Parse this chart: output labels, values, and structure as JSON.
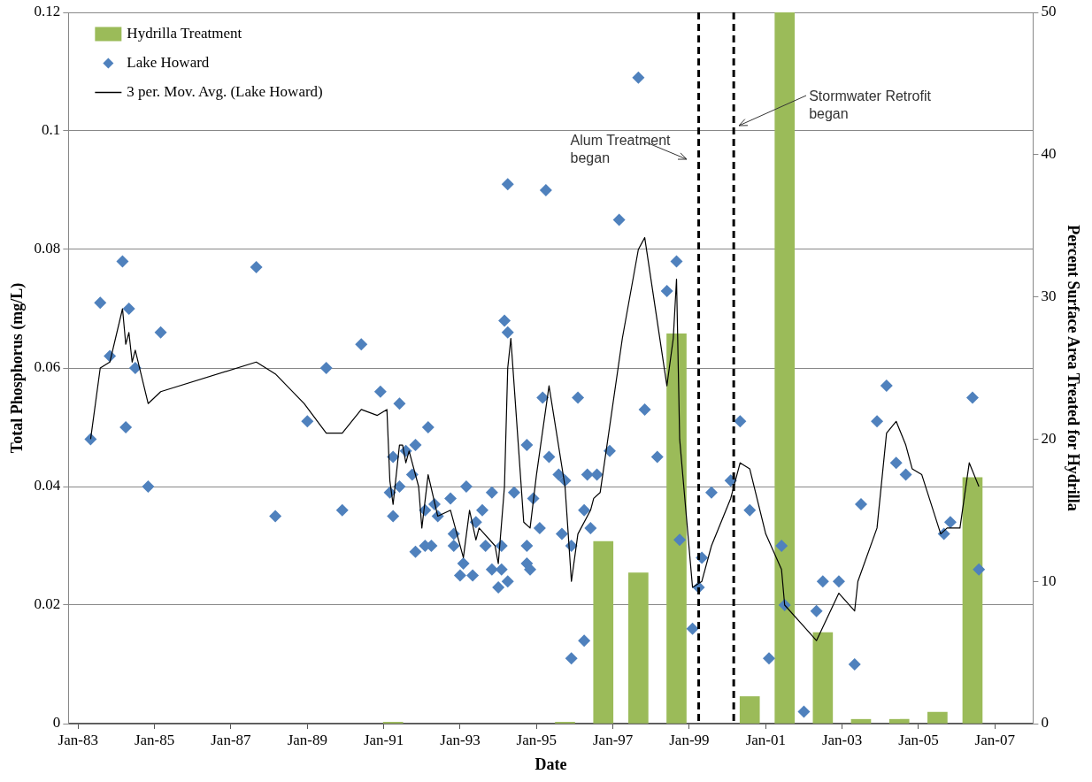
{
  "chart_data": {
    "type": "scatter",
    "xlabel": "Date",
    "ylabel": "Total Phosphorus (mg/L)",
    "y2label": "Percent Surface Area Treated for Hydrilla",
    "xlim": [
      "1982-10",
      "2008-01"
    ],
    "xticks": [
      {
        "value": "1983-01",
        "label": "Jan-83"
      },
      {
        "value": "1985-01",
        "label": "Jan-85"
      },
      {
        "value": "1987-01",
        "label": "Jan-87"
      },
      {
        "value": "1989-01",
        "label": "Jan-89"
      },
      {
        "value": "1991-01",
        "label": "Jan-91"
      },
      {
        "value": "1993-01",
        "label": "Jan-93"
      },
      {
        "value": "1995-01",
        "label": "Jan-95"
      },
      {
        "value": "1997-01",
        "label": "Jan-97"
      },
      {
        "value": "1999-01",
        "label": "Jan-99"
      },
      {
        "value": "2001-01",
        "label": "Jan-01"
      },
      {
        "value": "2003-01",
        "label": "Jan-03"
      },
      {
        "value": "2005-01",
        "label": "Jan-05"
      },
      {
        "value": "2007-01",
        "label": "Jan-07"
      }
    ],
    "ylim": [
      0,
      0.12
    ],
    "yticks": [
      0,
      0.02,
      0.04,
      0.06,
      0.08,
      0.1,
      0.12
    ],
    "y2lim": [
      0,
      50
    ],
    "y2ticks": [
      0,
      10,
      20,
      30,
      40,
      50
    ],
    "grid": "y",
    "legend": "top left",
    "marker": "diamond",
    "ref_lines": [
      {
        "axis": "x",
        "value": "1999-04",
        "label": "Alum Treatment began",
        "color": "#000000",
        "line_style": "dashed"
      },
      {
        "axis": "x",
        "value": "2000-03",
        "label": "Stormwater Retrofit began",
        "color": "#000000",
        "line_style": "dashed"
      }
    ],
    "series": [
      {
        "type": "bar",
        "name": "Hydrilla Treatment",
        "color": "#9bbb59",
        "axis": "y2",
        "x": [
          "1991-04",
          "1995-10",
          "1996-10",
          "1997-09",
          "1998-09",
          "2000-08",
          "2001-07",
          "2002-07",
          "2003-07",
          "2004-07",
          "2005-07",
          "2006-06"
        ],
        "values": [
          0.1,
          0.1,
          12.8,
          10.6,
          27.4,
          1.9,
          50,
          6.4,
          0.3,
          0.3,
          0.8,
          17.3
        ]
      },
      {
        "name": "Lake Howard",
        "color": "#4f81bd",
        "x": [
          "1983-05",
          "1983-08",
          "1983-11",
          "1984-03",
          "1984-04",
          "1984-05",
          "1984-07",
          "1984-11",
          "1985-03",
          "1987-09",
          "1988-03",
          "1989-01",
          "1989-07",
          "1989-12",
          "1990-06",
          "1990-12",
          "1991-03",
          "1991-04",
          "1991-04",
          "1991-06",
          "1991-06",
          "1991-08",
          "1991-10",
          "1991-11",
          "1991-11",
          "1992-02",
          "1992-02",
          "1992-03",
          "1992-04",
          "1992-05",
          "1992-06",
          "1992-10",
          "1992-11",
          "1992-11",
          "1993-01",
          "1993-02",
          "1993-03",
          "1993-05",
          "1993-06",
          "1993-08",
          "1993-09",
          "1993-11",
          "1993-11",
          "1994-01",
          "1994-02",
          "1994-02",
          "1994-03",
          "1994-04",
          "1994-04",
          "1994-04",
          "1994-06",
          "1994-10",
          "1994-10",
          "1994-10",
          "1994-11",
          "1994-12",
          "1995-02",
          "1995-03",
          "1995-04",
          "1995-05",
          "1995-08",
          "1995-09",
          "1995-10",
          "1995-12",
          "1995-12",
          "1996-02",
          "1996-04",
          "1996-04",
          "1996-05",
          "1996-06",
          "1996-08",
          "1996-12",
          "1997-03",
          "1997-09",
          "1997-11",
          "1998-03",
          "1998-06",
          "1998-09",
          "1998-10",
          "1999-02",
          "1999-04",
          "1999-05",
          "1999-08",
          "2000-02",
          "2000-05",
          "2000-08",
          "2001-02",
          "2001-06",
          "2001-07",
          "2002-01",
          "2002-05",
          "2002-07",
          "2002-12",
          "2003-05",
          "2003-07",
          "2003-12",
          "2004-03",
          "2004-06",
          "2004-09",
          "2005-09",
          "2005-11",
          "2006-06",
          "2006-08"
        ],
        "values": [
          0.048,
          0.071,
          0.062,
          0.078,
          0.05,
          0.07,
          0.06,
          0.04,
          0.066,
          0.077,
          0.035,
          0.051,
          0.06,
          0.036,
          0.064,
          0.056,
          0.039,
          0.035,
          0.045,
          0.054,
          0.04,
          0.046,
          0.042,
          0.047,
          0.029,
          0.036,
          0.03,
          0.05,
          0.03,
          0.037,
          0.035,
          0.038,
          0.032,
          0.03,
          0.025,
          0.027,
          0.04,
          0.025,
          0.034,
          0.036,
          0.03,
          0.039,
          0.026,
          0.023,
          0.03,
          0.026,
          0.068,
          0.024,
          0.091,
          0.066,
          0.039,
          0.027,
          0.047,
          0.03,
          0.026,
          0.038,
          0.033,
          0.055,
          0.09,
          0.045,
          0.042,
          0.032,
          0.041,
          0.03,
          0.011,
          0.055,
          0.014,
          0.036,
          0.042,
          0.033,
          0.042,
          0.046,
          0.085,
          0.109,
          0.053,
          0.045,
          0.073,
          0.078,
          0.031,
          0.016,
          0.023,
          0.028,
          0.039,
          0.041,
          0.051,
          0.036,
          0.011,
          0.03,
          0.02,
          0.002,
          0.019,
          0.024,
          0.024,
          0.01,
          0.037,
          0.051,
          0.057,
          0.044,
          0.042,
          0.032,
          0.034,
          0.055,
          0.026
        ]
      },
      {
        "type": "line",
        "name": "3 per. Mov. Avg. (Lake Howard)",
        "color": "#000000",
        "marker": "none",
        "x": [
          "1983-05",
          "1983-08",
          "1983-11",
          "1984-03",
          "1984-04",
          "1984-05",
          "1984-06",
          "1984-07",
          "1984-11",
          "1985-03",
          "1987-09",
          "1988-03",
          "1988-12",
          "1989-07",
          "1989-12",
          "1990-06",
          "1990-11",
          "1991-02",
          "1991-03",
          "1991-04",
          "1991-06",
          "1991-07",
          "1991-08",
          "1991-09",
          "1991-12",
          "1992-01",
          "1992-03",
          "1992-06",
          "1992-10",
          "1993-02",
          "1993-04",
          "1993-06",
          "1993-07",
          "1993-12",
          "1994-01",
          "1994-03",
          "1994-04",
          "1994-05",
          "1994-09",
          "1994-11",
          "1995-01",
          "1995-05",
          "1995-10",
          "1995-12",
          "1996-02",
          "1996-06",
          "1996-07",
          "1996-09",
          "1997-04",
          "1997-09",
          "1997-11",
          "1998-06",
          "1998-08",
          "1998-09",
          "1998-10",
          "1999-02",
          "1999-05",
          "1999-08",
          "2000-02",
          "2000-05",
          "2000-08",
          "2001-01",
          "2001-06",
          "2001-07",
          "2001-12",
          "2002-05",
          "2002-12",
          "2003-05",
          "2003-06",
          "2003-12",
          "2004-03",
          "2004-06",
          "2004-09",
          "2004-11",
          "2005-02",
          "2005-08",
          "2005-10",
          "2006-02",
          "2006-05",
          "2006-08"
        ],
        "values": [
          0.048,
          0.06,
          0.061,
          0.07,
          0.064,
          0.066,
          0.061,
          0.063,
          0.054,
          0.056,
          0.061,
          0.059,
          0.054,
          0.049,
          0.049,
          0.053,
          0.052,
          0.053,
          0.041,
          0.037,
          0.047,
          0.047,
          0.044,
          0.046,
          0.04,
          0.033,
          0.042,
          0.035,
          0.036,
          0.028,
          0.036,
          0.031,
          0.033,
          0.03,
          0.027,
          0.04,
          0.06,
          0.065,
          0.034,
          0.033,
          0.042,
          0.057,
          0.04,
          0.024,
          0.032,
          0.036,
          0.038,
          0.039,
          0.065,
          0.08,
          0.082,
          0.057,
          0.065,
          0.075,
          0.048,
          0.023,
          0.024,
          0.03,
          0.038,
          0.044,
          0.043,
          0.032,
          0.026,
          0.02,
          0.017,
          0.014,
          0.022,
          0.019,
          0.024,
          0.033,
          0.049,
          0.051,
          0.047,
          0.043,
          0.042,
          0.032,
          0.033,
          0.033,
          0.044,
          0.04
        ]
      }
    ]
  }
}
